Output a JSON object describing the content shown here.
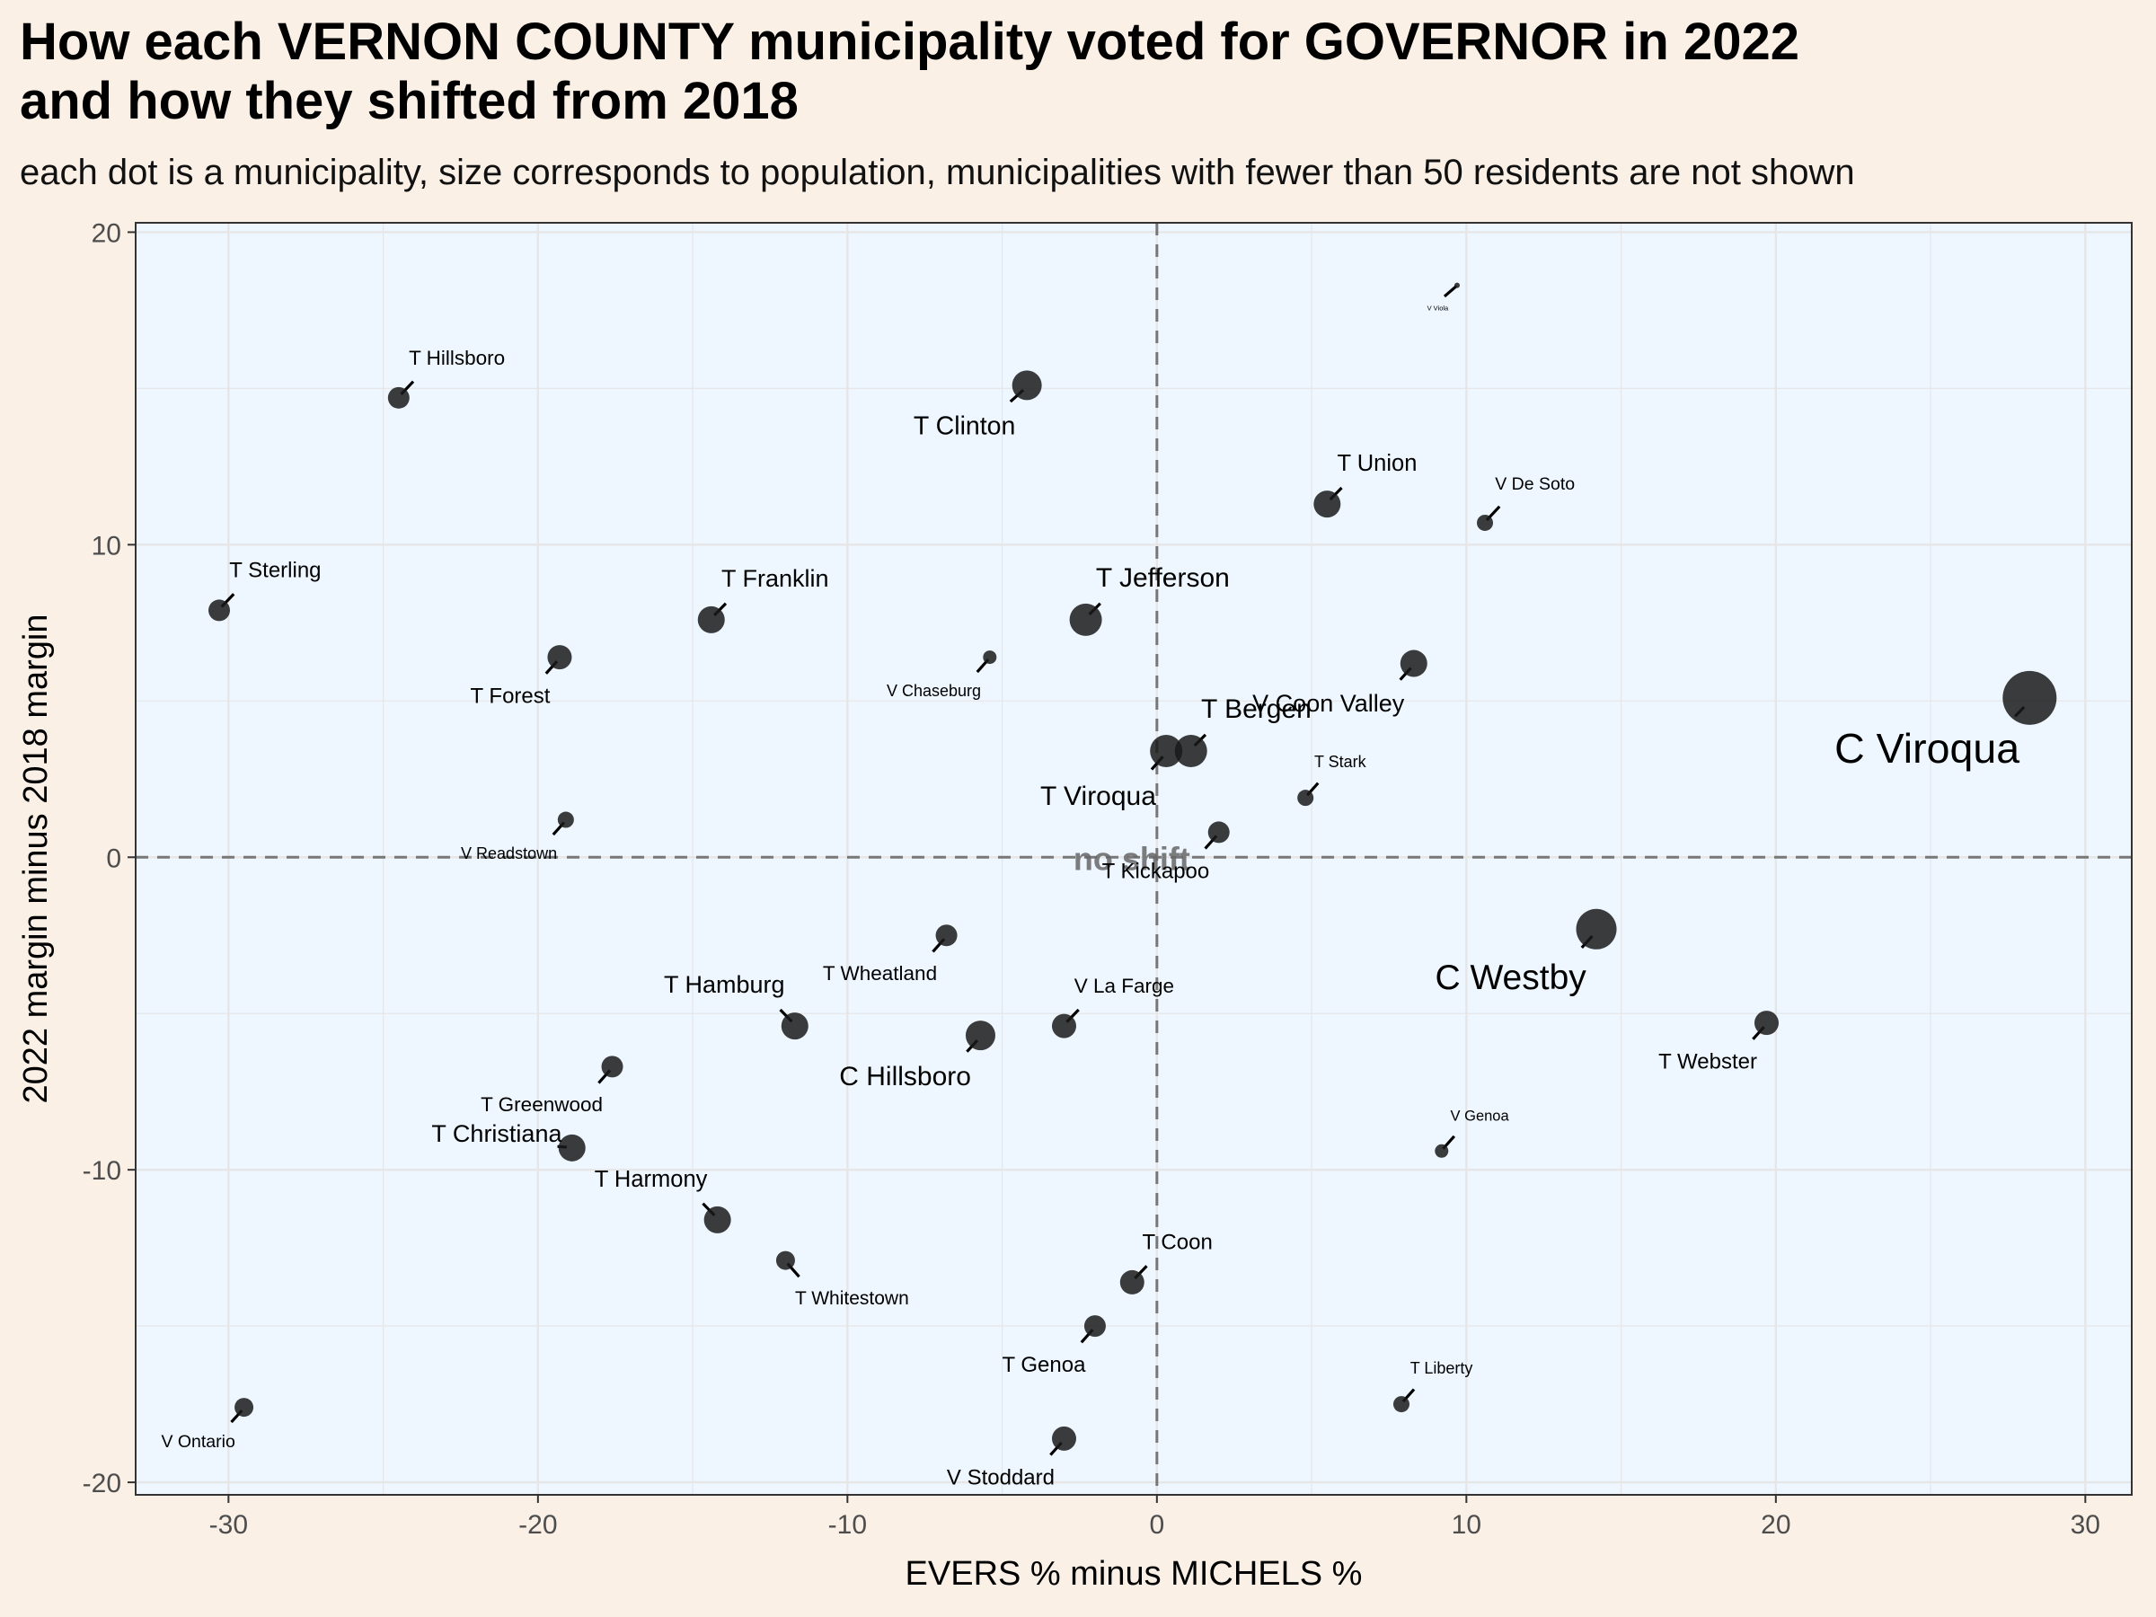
{
  "title_line1": "How each VERNON COUNTY municipality voted for GOVERNOR in 2022",
  "title_line2": "and how they shifted from 2018",
  "subtitle": "each dot is a municipality, size corresponds to population, municipalities with fewer than 50 residents are not shown",
  "colors": {
    "page_bg": "#faf0e6",
    "panel_bg": "#eef7ff",
    "point": "#1a1a1a",
    "reference_line": "#777777",
    "grid": "#e6e6e6"
  },
  "chart_data": {
    "type": "scatter",
    "xlabel": "EVERS % minus MICHELS %",
    "ylabel": "2022 margin minus 2018 margin",
    "xlim": [
      -33,
      31.5
    ],
    "ylim": [
      -20.4,
      20.3
    ],
    "xticks": [
      -30,
      -20,
      -10,
      0,
      10,
      20,
      30
    ],
    "yticks": [
      -20,
      -10,
      0,
      10,
      20
    ],
    "xtick_labels": [
      "-30",
      "-20",
      "-10",
      "0",
      "10",
      "20",
      "30"
    ],
    "ytick_labels": [
      "-20",
      "-10",
      "0",
      "10",
      "20"
    ],
    "reference_lines": {
      "x": 0,
      "y": 0,
      "style": "dashed"
    },
    "grid": true,
    "center_annotation": "no shift",
    "points": [
      {
        "name": "T Hillsboro",
        "x": -24.5,
        "y": 14.7,
        "size": 8,
        "label_dx": 15,
        "label_dy": -22,
        "font": 15
      },
      {
        "name": "T Clinton",
        "x": -4.2,
        "y": 15.1,
        "size": 11,
        "label_dx": -17,
        "label_dy": 22,
        "font": 19
      },
      {
        "name": "V Viola",
        "x": 9.7,
        "y": 18.3,
        "size": 2,
        "label_dx": -13,
        "label_dy": 15,
        "font": 5
      },
      {
        "name": "T Union",
        "x": 5.5,
        "y": 11.3,
        "size": 10,
        "label_dx": 15,
        "label_dy": -22,
        "font": 17
      },
      {
        "name": "V De Soto",
        "x": 10.6,
        "y": 10.7,
        "size": 6,
        "label_dx": 15,
        "label_dy": -22,
        "font": 13
      },
      {
        "name": "T Sterling",
        "x": -30.3,
        "y": 7.9,
        "size": 8,
        "label_dx": 15,
        "label_dy": -22,
        "font": 16
      },
      {
        "name": "T Franklin",
        "x": -14.4,
        "y": 7.6,
        "size": 10,
        "label_dx": 15,
        "label_dy": -22,
        "font": 18
      },
      {
        "name": "T Jefferson",
        "x": -2.3,
        "y": 7.6,
        "size": 12,
        "label_dx": 15,
        "label_dy": -22,
        "font": 20
      },
      {
        "name": "T Forest",
        "x": -19.3,
        "y": 6.4,
        "size": 9,
        "label_dx": -14,
        "label_dy": 22,
        "font": 16
      },
      {
        "name": "V Chaseburg",
        "x": -5.4,
        "y": 6.4,
        "size": 5,
        "label_dx": -13,
        "label_dy": 20,
        "font": 12
      },
      {
        "name": "V Coon Valley",
        "x": 8.3,
        "y": 6.2,
        "size": 10,
        "label_dx": -14,
        "label_dy": 22,
        "font": 18
      },
      {
        "name": "C Viroqua",
        "x": 28.2,
        "y": 5.1,
        "size": 20,
        "label_dx": -15,
        "label_dy": 25,
        "font": 31
      },
      {
        "name": "T Bergen",
        "x": 1.1,
        "y": 3.4,
        "size": 12,
        "label_dx": 15,
        "label_dy": -22,
        "font": 20
      },
      {
        "name": "T Viroqua",
        "x": 0.3,
        "y": 3.4,
        "size": 12,
        "label_dx": -15,
        "label_dy": 25,
        "font": 20
      },
      {
        "name": "T Stark",
        "x": 4.8,
        "y": 1.9,
        "size": 6,
        "label_dx": 13,
        "label_dy": -20,
        "font": 12
      },
      {
        "name": "T Kickapoo",
        "x": 2.0,
        "y": 0.8,
        "size": 8,
        "label_dx": -14,
        "label_dy": 22,
        "font": 16
      },
      {
        "name": "V Readstown",
        "x": -19.1,
        "y": 1.2,
        "size": 6,
        "label_dx": -13,
        "label_dy": 20,
        "font": 12
      },
      {
        "name": "T Wheatland",
        "x": -6.8,
        "y": -2.5,
        "size": 8,
        "label_dx": -14,
        "label_dy": 22,
        "font": 15
      },
      {
        "name": "C Westby",
        "x": 14.2,
        "y": -2.3,
        "size": 15,
        "label_dx": -15,
        "label_dy": 25,
        "font": 26
      },
      {
        "name": "V La Farge",
        "x": -3.0,
        "y": -5.4,
        "size": 9,
        "label_dx": 15,
        "label_dy": -22,
        "font": 15
      },
      {
        "name": "T Webster",
        "x": 19.7,
        "y": -5.3,
        "size": 9,
        "label_dx": -14,
        "label_dy": 22,
        "font": 16
      },
      {
        "name": "T Hamburg",
        "x": -11.7,
        "y": -5.4,
        "size": 10,
        "label_dx": -15,
        "label_dy": -22,
        "font": 18
      },
      {
        "name": "C Hillsboro",
        "x": -5.7,
        "y": -5.7,
        "size": 11,
        "label_dx": -14,
        "label_dy": 22,
        "font": 20
      },
      {
        "name": "T Greenwood",
        "x": -17.6,
        "y": -6.7,
        "size": 8,
        "label_dx": -14,
        "label_dy": 22,
        "font": 15
      },
      {
        "name": "V Genoa",
        "x": 9.2,
        "y": -9.4,
        "size": 5,
        "label_dx": 13,
        "label_dy": -20,
        "font": 11
      },
      {
        "name": "T Christiana",
        "x": -18.9,
        "y": -9.3,
        "size": 10,
        "label_dx": -15,
        "label_dy": -2,
        "font": 18
      },
      {
        "name": "T Harmony",
        "x": -14.2,
        "y": -11.6,
        "size": 10,
        "label_dx": -15,
        "label_dy": -22,
        "font": 17
      },
      {
        "name": "T Whitestown",
        "x": -12.0,
        "y": -12.9,
        "size": 7,
        "label_dx": 14,
        "label_dy": 22,
        "font": 14
      },
      {
        "name": "T Coon",
        "x": -0.8,
        "y": -13.6,
        "size": 9,
        "label_dx": 15,
        "label_dy": -22,
        "font": 16
      },
      {
        "name": "T Genoa",
        "x": -2.0,
        "y": -15.0,
        "size": 8,
        "label_dx": -14,
        "label_dy": 22,
        "font": 16
      },
      {
        "name": "T Liberty",
        "x": 7.9,
        "y": -17.5,
        "size": 6,
        "label_dx": 13,
        "label_dy": -20,
        "font": 12
      },
      {
        "name": "V Ontario",
        "x": -29.5,
        "y": -17.6,
        "size": 7,
        "label_dx": -13,
        "label_dy": 20,
        "font": 13
      },
      {
        "name": "V Stoddard",
        "x": -3.0,
        "y": -18.6,
        "size": 9,
        "label_dx": -14,
        "label_dy": 22,
        "font": 16
      }
    ]
  }
}
